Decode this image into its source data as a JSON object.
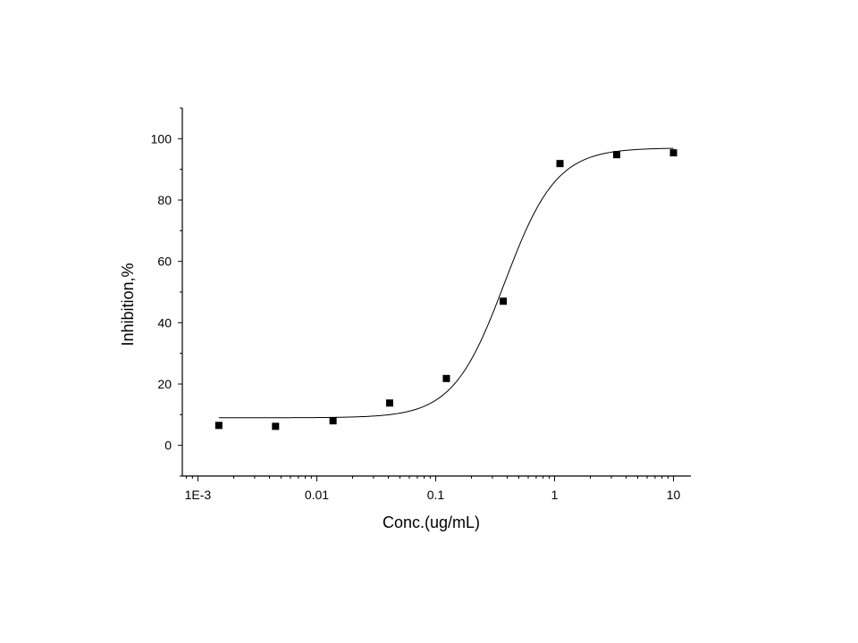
{
  "chart_data": {
    "type": "scatter",
    "title": "",
    "xlabel": "Conc.(ug/mL)",
    "ylabel": "Inhibition,%",
    "x_scale": "log",
    "xlim": [
      0.00074,
      14
    ],
    "ylim": [
      -10,
      110
    ],
    "x_ticks": [
      {
        "value": 0.001,
        "label": "1E-3"
      },
      {
        "value": 0.01,
        "label": "0.01"
      },
      {
        "value": 0.1,
        "label": "0.1"
      },
      {
        "value": 1,
        "label": "1"
      },
      {
        "value": 10,
        "label": "10"
      }
    ],
    "y_ticks": [
      {
        "value": 0,
        "label": "0"
      },
      {
        "value": 20,
        "label": "20"
      },
      {
        "value": 40,
        "label": "40"
      },
      {
        "value": 60,
        "label": "60"
      },
      {
        "value": 80,
        "label": "80"
      },
      {
        "value": 100,
        "label": "100"
      }
    ],
    "grid": false,
    "legend": "none",
    "series": [
      {
        "kind": "points",
        "marker": "square",
        "color": "#000000",
        "x": [
          0.0015,
          0.0045,
          0.0137,
          0.041,
          0.123,
          0.37,
          1.11,
          3.33,
          10
        ],
        "y": [
          6.5,
          6.2,
          8.0,
          13.8,
          21.8,
          47.0,
          91.9,
          94.8,
          95.4
        ]
      },
      {
        "kind": "fit",
        "curve": "four-parameter logistic",
        "color": "#000000",
        "bottom": 9.0,
        "top": 97.0,
        "ec50": 0.38,
        "hill": 2.0,
        "x_range": [
          0.0015,
          10
        ]
      }
    ]
  }
}
